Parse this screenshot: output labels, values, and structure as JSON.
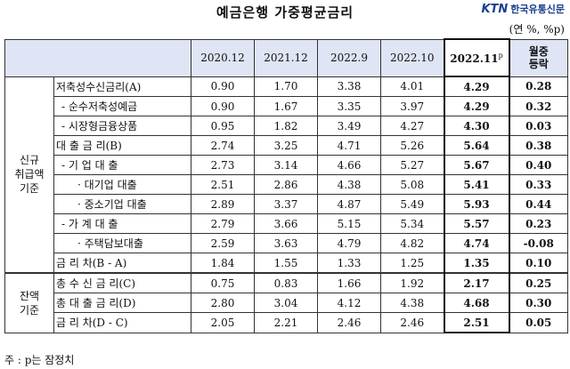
{
  "title": "예금은행 가중평균금리",
  "logo": {
    "ktn": "KTN",
    "name": "한국유통신문"
  },
  "unit": "(연 %, %p)",
  "columns": [
    "2020.12",
    "2021.12",
    "2022.9",
    "2022.10",
    "2022.11",
    "월중\n등락"
  ],
  "latest_col": {
    "label": "2022.11",
    "sup": "p"
  },
  "change_col": {
    "line1": "월중",
    "line2": "등락"
  },
  "groups": [
    {
      "label_lines": [
        "신규",
        "취급액",
        "기준"
      ]
    },
    {
      "label_lines": [
        "잔액",
        "기준"
      ]
    }
  ],
  "rows_new": [
    {
      "label": "저축성수신금리(A)",
      "values": [
        "0.90",
        "1.70",
        "3.38",
        "4.01",
        "4.29",
        "0.28"
      ]
    },
    {
      "label": "- 순수저축성예금",
      "values": [
        "0.90",
        "1.67",
        "3.35",
        "3.97",
        "4.29",
        "0.32"
      ]
    },
    {
      "label": "- 시장형금융상품",
      "values": [
        "0.95",
        "1.82",
        "3.49",
        "4.27",
        "4.30",
        "0.03"
      ]
    },
    {
      "label": "대 출 금 리(B)",
      "values": [
        "2.74",
        "3.25",
        "4.71",
        "5.26",
        "5.64",
        "0.38"
      ]
    },
    {
      "label": "- 기 업 대 출",
      "values": [
        "2.73",
        "3.14",
        "4.66",
        "5.27",
        "5.67",
        "0.40"
      ]
    },
    {
      "label": "· 대기업 대출",
      "values": [
        "2.51",
        "2.86",
        "4.38",
        "5.08",
        "5.41",
        "0.33"
      ]
    },
    {
      "label": "· 중소기업 대출",
      "values": [
        "2.89",
        "3.37",
        "4.87",
        "5.49",
        "5.93",
        "0.44"
      ]
    },
    {
      "label": "- 가 계 대 출",
      "values": [
        "2.79",
        "3.66",
        "5.15",
        "5.34",
        "5.57",
        "0.23"
      ]
    },
    {
      "label": "· 주택담보대출",
      "values": [
        "2.59",
        "3.63",
        "4.79",
        "4.82",
        "4.74",
        "-0.08"
      ]
    },
    {
      "label": "금 리 차(B - A)",
      "values": [
        "1.84",
        "1.55",
        "1.33",
        "1.25",
        "1.35",
        "0.10"
      ]
    }
  ],
  "rows_balance": [
    {
      "label": "총 수 신 금 리(C)",
      "values": [
        "0.75",
        "0.83",
        "1.66",
        "1.92",
        "2.17",
        "0.25"
      ]
    },
    {
      "label": "총 대 출 금 리(D)",
      "values": [
        "2.80",
        "3.04",
        "4.12",
        "4.38",
        "4.68",
        "0.30"
      ]
    },
    {
      "label": "금 리 차(D - C)",
      "values": [
        "2.05",
        "2.21",
        "2.46",
        "2.46",
        "2.51",
        "0.05"
      ]
    }
  ],
  "note": "주 : p는 잠정치"
}
